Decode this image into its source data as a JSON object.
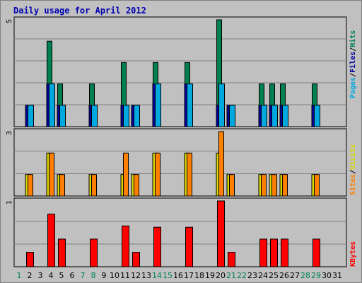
{
  "title": "Daily usage for April 2012",
  "chart_data": [
    {
      "type": "bar",
      "panel": "pages-files-hits",
      "categories": [
        "1",
        "2",
        "3",
        "4",
        "5",
        "6",
        "7",
        "8",
        "9",
        "10",
        "11",
        "12",
        "13",
        "14",
        "15",
        "16",
        "17",
        "18",
        "19",
        "20",
        "21",
        "22",
        "23",
        "24",
        "25",
        "26",
        "27",
        "28",
        "29",
        "30",
        "31"
      ],
      "weekend_days": [
        "1",
        "7",
        "8",
        "14",
        "15",
        "21",
        "22",
        "28",
        "29"
      ],
      "ylim": [
        0,
        5
      ],
      "y_max_label": "5",
      "legend_right": [
        "Pages",
        "/",
        "Files",
        "/",
        "Hits"
      ],
      "series": [
        {
          "name": "Pages",
          "color": "#0000a0",
          "values": [
            0,
            1,
            0,
            2,
            1,
            0,
            0,
            1,
            0,
            0,
            1,
            1,
            0,
            2,
            0,
            0,
            2,
            0,
            0,
            1,
            1,
            0,
            0,
            1,
            1,
            1,
            0,
            0,
            1,
            0,
            0
          ]
        },
        {
          "name": "Files",
          "color": "#00bfff",
          "values": [
            0,
            1,
            0,
            2,
            1,
            0,
            0,
            1,
            0,
            0,
            1,
            1,
            0,
            2,
            0,
            0,
            2,
            0,
            0,
            2,
            1,
            0,
            0,
            1,
            1,
            1,
            0,
            0,
            1,
            0,
            0
          ]
        },
        {
          "name": "Hits",
          "color": "#008050",
          "values": [
            0,
            0,
            0,
            4,
            2,
            0,
            0,
            2,
            0,
            0,
            3,
            0,
            0,
            3,
            0,
            0,
            3,
            0,
            0,
            5,
            0,
            0,
            0,
            2,
            2,
            2,
            0,
            0,
            2,
            0,
            0
          ]
        }
      ]
    },
    {
      "type": "bar",
      "panel": "sites-visits",
      "categories": [
        "1",
        "2",
        "3",
        "4",
        "5",
        "6",
        "7",
        "8",
        "9",
        "10",
        "11",
        "12",
        "13",
        "14",
        "15",
        "16",
        "17",
        "18",
        "19",
        "20",
        "21",
        "22",
        "23",
        "24",
        "25",
        "26",
        "27",
        "28",
        "29",
        "30",
        "31"
      ],
      "ylim": [
        0,
        3
      ],
      "y_max_label": "3",
      "legend_right": [
        "Sites",
        "/",
        "Visits"
      ],
      "series": [
        {
          "name": "Visits",
          "color": "#ffff00",
          "values": [
            0,
            1,
            0,
            2,
            1,
            0,
            0,
            1,
            0,
            0,
            1,
            1,
            0,
            2,
            0,
            0,
            2,
            0,
            0,
            2,
            1,
            0,
            0,
            1,
            1,
            1,
            0,
            0,
            1,
            0,
            0
          ]
        },
        {
          "name": "Sites",
          "color": "#ff8000",
          "values": [
            0,
            1,
            0,
            2,
            1,
            0,
            0,
            1,
            0,
            0,
            2,
            1,
            0,
            2,
            0,
            0,
            2,
            0,
            0,
            3,
            1,
            0,
            0,
            1,
            1,
            1,
            0,
            0,
            1,
            0,
            0
          ]
        }
      ]
    },
    {
      "type": "bar",
      "panel": "kbytes",
      "categories": [
        "1",
        "2",
        "3",
        "4",
        "5",
        "6",
        "7",
        "8",
        "9",
        "10",
        "11",
        "12",
        "13",
        "14",
        "15",
        "16",
        "17",
        "18",
        "19",
        "20",
        "21",
        "22",
        "23",
        "24",
        "25",
        "26",
        "27",
        "28",
        "29",
        "30",
        "31"
      ],
      "ylim": [
        0,
        1
      ],
      "y_max_label": "1",
      "legend_right": [
        "KBytes"
      ],
      "series": [
        {
          "name": "KBytes",
          "color": "#ff0000",
          "values": [
            0,
            0.22,
            0,
            0.8,
            0.42,
            0,
            0,
            0.42,
            0,
            0,
            0.62,
            0.22,
            0,
            0.6,
            0,
            0,
            0.6,
            0,
            0,
            1.0,
            0.22,
            0,
            0,
            0.42,
            0.42,
            0.42,
            0,
            0,
            0.42,
            0,
            0
          ]
        }
      ]
    }
  ],
  "colors": {
    "background": "#c0c0c0",
    "gridline": "#808080",
    "title": "#0000b0",
    "weekday_label": "#000000",
    "weekend_label": "#00805c",
    "pages": "#00a8e0",
    "files": "#0000a0",
    "hits": "#008050",
    "sites": "#ff8000",
    "visits": "#d8d800",
    "kbytes": "#ff0000"
  }
}
